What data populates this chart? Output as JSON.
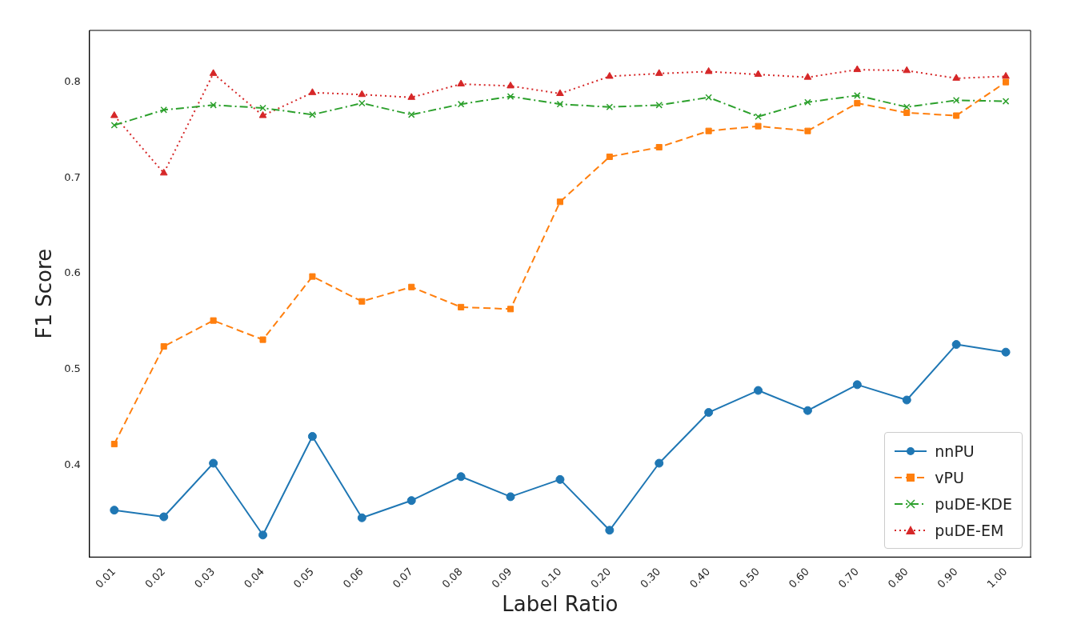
{
  "chart_data": {
    "type": "line",
    "xlabel": "Label Ratio",
    "ylabel": "F1 Score",
    "categories": [
      "0.01",
      "0.02",
      "0.03",
      "0.04",
      "0.05",
      "0.06",
      "0.07",
      "0.08",
      "0.09",
      "0.10",
      "0.20",
      "0.30",
      "0.40",
      "0.50",
      "0.60",
      "0.70",
      "0.80",
      "0.90",
      "1.00"
    ],
    "ylim": [
      0.304,
      0.854
    ],
    "yticks": [
      0.4,
      0.5,
      0.6,
      0.7,
      0.8
    ],
    "grid": false,
    "legend": "bottom right",
    "series": [
      {
        "name": "nnPU",
        "color": "#1f77b4",
        "marker": "circle",
        "line_style": "solid",
        "values": [
          0.353,
          0.346,
          0.402,
          0.327,
          0.43,
          0.345,
          0.363,
          0.388,
          0.367,
          0.385,
          0.332,
          0.402,
          0.455,
          0.478,
          0.457,
          0.484,
          0.468,
          0.526,
          0.518
        ]
      },
      {
        "name": "vPU",
        "color": "#ff7f0e",
        "marker": "square",
        "line_style": "dashed",
        "values": [
          0.422,
          0.524,
          0.551,
          0.531,
          0.597,
          0.571,
          0.586,
          0.565,
          0.563,
          0.675,
          0.722,
          0.732,
          0.749,
          0.754,
          0.749,
          0.778,
          0.768,
          0.765,
          0.8
        ]
      },
      {
        "name": "puDE-KDE",
        "color": "#2ca02c",
        "marker": "cross",
        "line_style": "dashdot",
        "values": [
          0.755,
          0.771,
          0.776,
          0.773,
          0.766,
          0.778,
          0.766,
          0.777,
          0.785,
          0.777,
          0.774,
          0.776,
          0.784,
          0.764,
          0.779,
          0.786,
          0.774,
          0.781,
          0.78
        ]
      },
      {
        "name": "puDE-EM",
        "color": "#d62728",
        "marker": "triangle",
        "line_style": "dotted",
        "values": [
          0.765,
          0.705,
          0.809,
          0.765,
          0.789,
          0.787,
          0.784,
          0.798,
          0.796,
          0.788,
          0.806,
          0.809,
          0.811,
          0.808,
          0.805,
          0.813,
          0.812,
          0.804,
          0.806
        ]
      }
    ]
  }
}
